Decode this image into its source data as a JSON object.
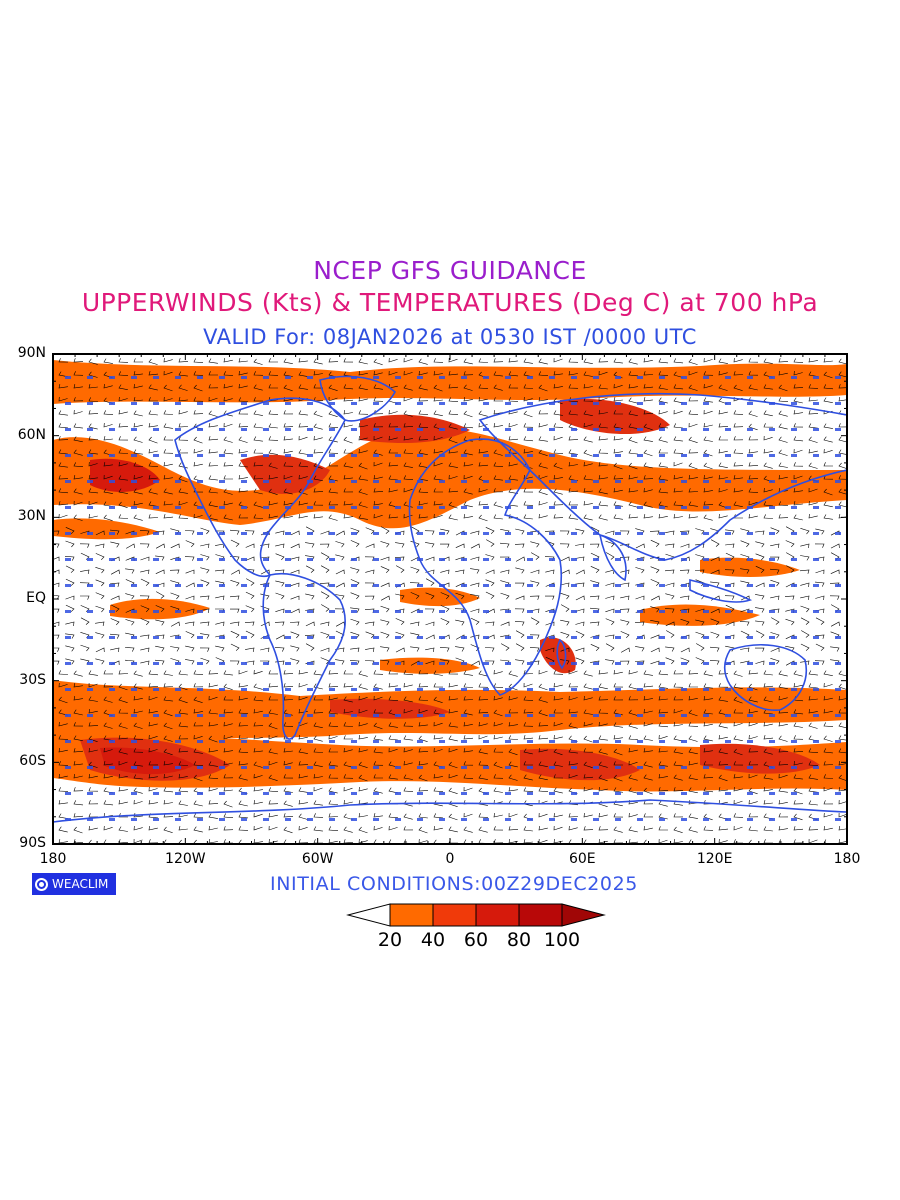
{
  "title": {
    "line1": "NCEP GFS GUIDANCE",
    "line2": "UPPERWINDS (Kts) & TEMPERATURES (Deg C) at 700 hPa",
    "line3": "VALID For: 08JAN2026 at 0530 IST /0000 UTC"
  },
  "axes": {
    "y_labels": [
      "90N",
      "60N",
      "30N",
      "EQ",
      "30S",
      "60S",
      "90S"
    ],
    "y_values": [
      90,
      60,
      30,
      0,
      -30,
      -60,
      -90
    ],
    "x_labels": [
      "180",
      "120W",
      "60W",
      "0",
      "60E",
      "120E",
      "180"
    ],
    "x_values": [
      -180,
      -120,
      -60,
      0,
      60,
      120,
      180
    ]
  },
  "footer": {
    "logo_text": "WEACLIM",
    "initial_conditions": "INITIAL CONDITIONS:00Z29DEC2025"
  },
  "colorbar": {
    "labels": [
      "20",
      "40",
      "60",
      "80",
      "100"
    ],
    "colors": [
      "#ffffff",
      "#ff6a00",
      "#f03a0a",
      "#d61a0c",
      "#b80808",
      "#a00606"
    ]
  },
  "colors": {
    "coastline": "#2f4fe0",
    "wind_barb": "#000000",
    "temperature_label": "#2f4fe0"
  }
}
